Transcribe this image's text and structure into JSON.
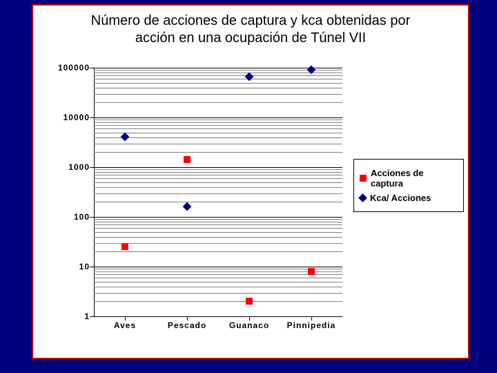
{
  "title_line1": "Número de acciones de captura y kca obtenidas por",
  "title_line2": "acción en una ocupación de Túnel VII",
  "chart": {
    "type": "scatter-log",
    "background_color": "#ffffff",
    "panel_border_color": "#c00000",
    "slide_background": "#00007c",
    "grid_color": "#808080",
    "grid_major_color": "#000000",
    "axis_color": "#000000",
    "y": {
      "scale": "log",
      "min": 1,
      "max": 100000,
      "ticks": [
        1,
        10,
        100,
        1000,
        10000,
        100000
      ],
      "tick_labels": [
        "1",
        "10",
        "100",
        "1000",
        "10000",
        "100000"
      ],
      "label_fontsize": 12,
      "label_fontweight": 700,
      "minor_intervals": 9
    },
    "x": {
      "categories": [
        "Aves",
        "Pescado",
        "Guanaco",
        "Pinnipedia"
      ],
      "label_fontsize": 12,
      "label_fontweight": 700,
      "letter_spacing": 1
    },
    "series": [
      {
        "name": "Acciones de captura",
        "marker": "square",
        "color": "#ff0000",
        "size": 10,
        "values": [
          25,
          1400,
          2,
          8
        ]
      },
      {
        "name": "Kca/ Acciones",
        "marker": "diamond",
        "color": "#000080",
        "size": 9,
        "values": [
          4100,
          160,
          65000,
          90000
        ]
      }
    ],
    "legend": {
      "border_color": "#000000",
      "background": "#ffffff",
      "fontsize": 13,
      "fontweight": 700
    }
  }
}
